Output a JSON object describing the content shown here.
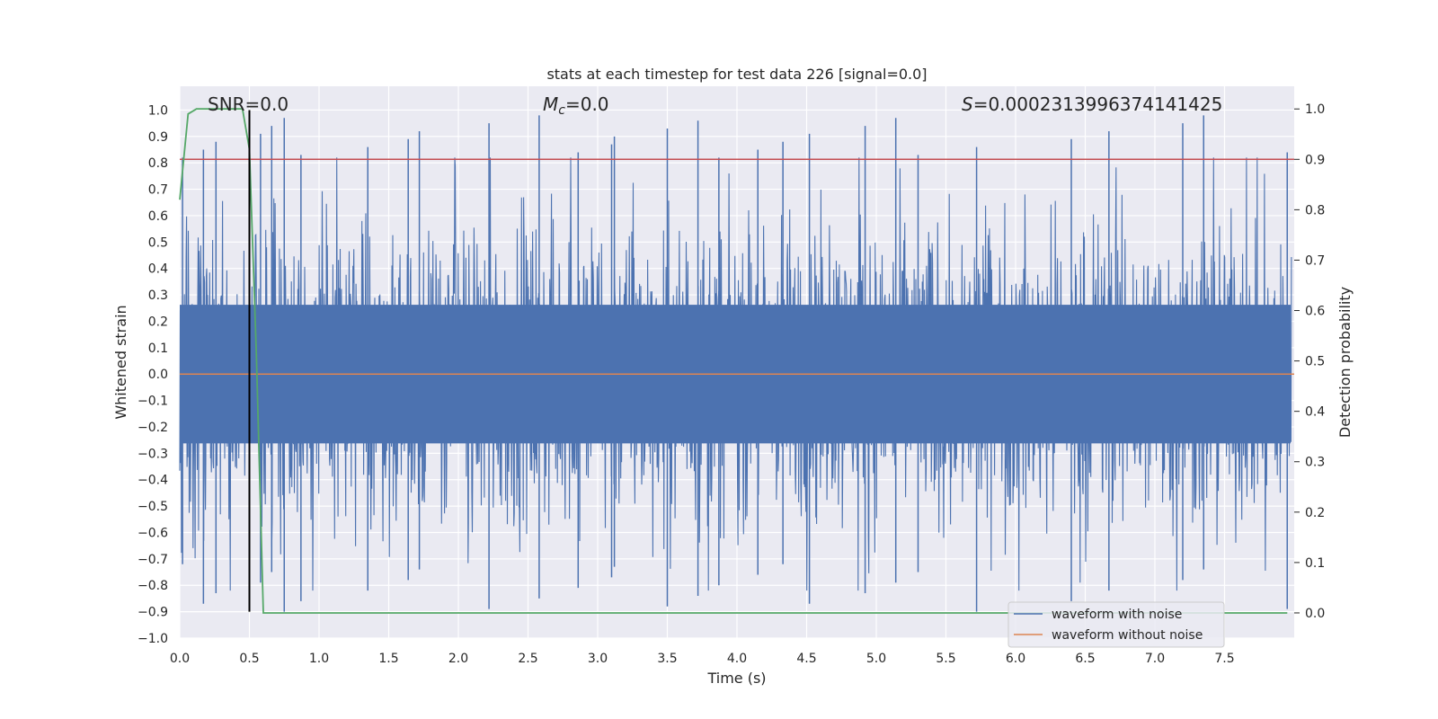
{
  "chart_data": {
    "type": "line",
    "title": "stats at each timestep for test data 226 [signal=0.0]",
    "xlabel": "Time (s)",
    "ylabel": "Whitened strain",
    "y2label": "Detection probability",
    "xlim": [
      0.0,
      8.0
    ],
    "ylim": [
      -1.0,
      1.09
    ],
    "y2lim": [
      -0.05,
      1.045
    ],
    "xticks": [
      "0.0",
      "0.5",
      "1.0",
      "1.5",
      "2.0",
      "2.5",
      "3.0",
      "3.5",
      "4.0",
      "4.5",
      "5.0",
      "5.5",
      "6.0",
      "6.5",
      "7.0",
      "7.5"
    ],
    "yticks": [
      "1.0",
      "0.9",
      "0.8",
      "0.7",
      "0.6",
      "0.5",
      "0.4",
      "0.3",
      "0.2",
      "0.1",
      "0.0",
      "-0.1",
      "-0.2",
      "-0.3",
      "-0.4",
      "-0.5",
      "-0.6",
      "-0.7",
      "-0.8",
      "-0.9",
      "-1.0"
    ],
    "y2ticks": [
      "1.0",
      "0.9",
      "0.8",
      "0.7",
      "0.6",
      "0.5",
      "0.4",
      "0.3",
      "0.2",
      "0.1",
      "0.0"
    ],
    "annotations": {
      "snr": "SNR=0.0",
      "mc_symbol": "M",
      "mc_sub": "c",
      "mc_value": "=0.0",
      "s_symbol": "S",
      "s_value": "=0.0002313996374141425"
    },
    "threshold": {
      "y2": 0.9,
      "color": "#c44e52"
    },
    "marker_line_x": 0.5,
    "series": [
      {
        "name": "waveform with noise",
        "color": "#4c72b0",
        "amplitude": 0.35,
        "peaks": [
          0.02,
          0.17,
          0.26,
          0.58,
          0.66,
          0.75,
          0.87,
          1.35,
          1.64,
          1.72,
          2.22,
          2.58,
          2.86,
          3.1,
          3.12,
          3.5,
          3.72,
          3.87,
          4.15,
          4.33,
          4.52,
          4.92,
          5.14,
          5.3,
          5.72,
          6.4,
          6.67,
          7.2,
          7.35,
          7.95
        ]
      },
      {
        "name": "waveform without noise",
        "color": "#dd8452",
        "values": [
          0.0,
          0.0
        ]
      },
      {
        "name": "",
        "color": "#55a868",
        "axis": "right",
        "x": [
          0.0,
          0.06,
          0.12,
          0.2,
          0.45,
          0.5,
          0.55,
          0.6,
          7.95
        ],
        "values": [
          0.82,
          0.99,
          1.0,
          1.0,
          1.0,
          0.92,
          0.51,
          0.0,
          0.0
        ]
      }
    ],
    "legend_loc": "lower right",
    "grid": true
  }
}
